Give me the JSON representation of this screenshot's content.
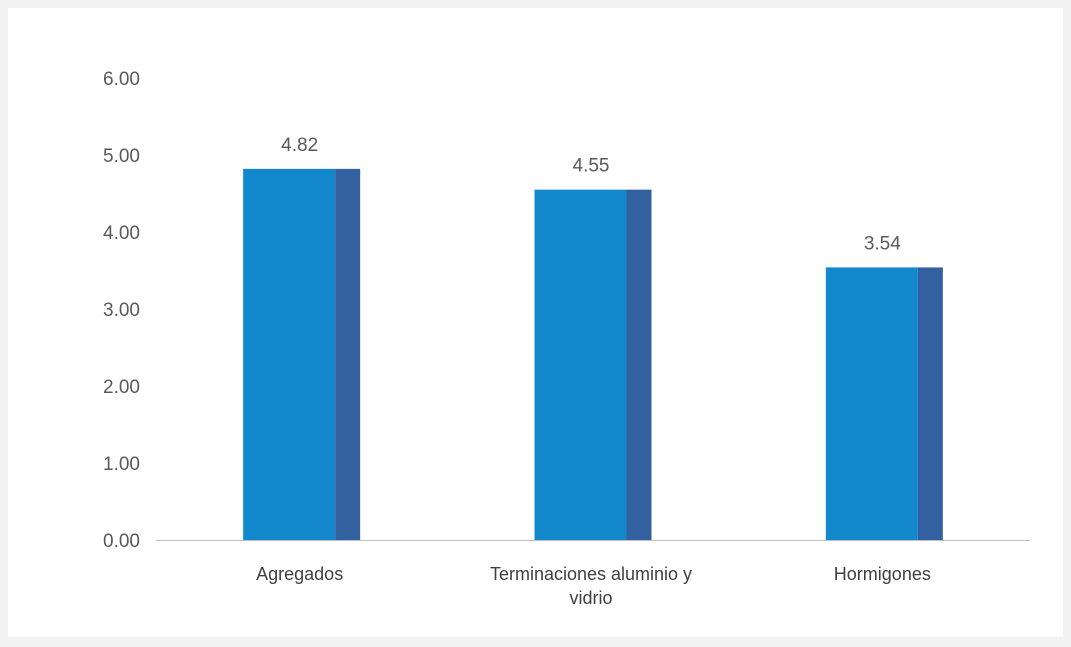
{
  "chart_data": {
    "type": "bar",
    "title": "",
    "xlabel": "",
    "ylabel": "",
    "categories": [
      "Agregados",
      "Terminaciones aluminio y vidrio",
      "Hormigones"
    ],
    "category_lines": [
      [
        "Agregados"
      ],
      [
        "Terminaciones aluminio y",
        "vidrio"
      ],
      [
        "Hormigones"
      ]
    ],
    "values": [
      4.82,
      4.55,
      3.54
    ],
    "data_labels": [
      "4.82",
      "4.55",
      "3.54"
    ],
    "ylim": [
      0,
      6
    ],
    "yticks": [
      0,
      1,
      2,
      3,
      4,
      5,
      6
    ],
    "ytick_labels": [
      "0.00",
      "1.00",
      "2.00",
      "3.00",
      "4.00",
      "5.00",
      "6.00"
    ],
    "grid": false,
    "legend": "none",
    "colors": {
      "bar_front": "#1388cd",
      "bar_side": "#33609f",
      "axis": "#bfbfbf"
    }
  }
}
